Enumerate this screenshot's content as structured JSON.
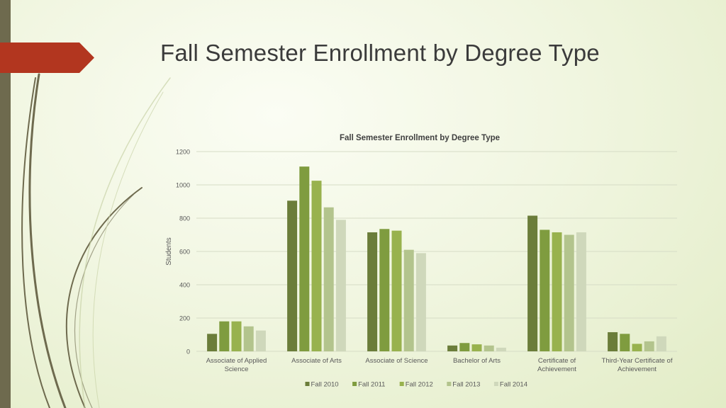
{
  "slide": {
    "title": "Fall Semester Enrollment by Degree Type"
  },
  "colors": {
    "left_bar": "#6e6a4e",
    "title_arrow": "#b2361f",
    "decor_lines": "#6e6a4e"
  },
  "chart_data": {
    "type": "bar",
    "title": "Fall Semester Enrollment by Degree Type",
    "xlabel": "",
    "ylabel": "Students",
    "ylim": [
      0,
      1200
    ],
    "yticks": [
      0,
      200,
      400,
      600,
      800,
      1000,
      1200
    ],
    "grid": true,
    "legend_position": "bottom",
    "categories": [
      [
        "Associate of Applied",
        "Science"
      ],
      [
        "Associate of Arts"
      ],
      [
        "Associate of Science"
      ],
      [
        "Bachelor of Arts"
      ],
      [
        "Certificate of",
        "Achievement"
      ],
      [
        "Third-Year Certificate of",
        "Achievement"
      ]
    ],
    "series": [
      {
        "name": "Fall 2010",
        "color": "#6b7d3a",
        "values": [
          105,
          905,
          715,
          35,
          815,
          115
        ]
      },
      {
        "name": "Fall 2011",
        "color": "#7f9c3f",
        "values": [
          180,
          1110,
          735,
          50,
          730,
          105
        ]
      },
      {
        "name": "Fall 2012",
        "color": "#98b24e",
        "values": [
          180,
          1025,
          725,
          42,
          715,
          45
        ]
      },
      {
        "name": "Fall 2013",
        "color": "#b3c48d",
        "values": [
          150,
          865,
          610,
          35,
          700,
          60
        ]
      },
      {
        "name": "Fall 2014",
        "color": "#cfd8bb",
        "values": [
          125,
          790,
          590,
          22,
          715,
          90
        ]
      }
    ]
  }
}
